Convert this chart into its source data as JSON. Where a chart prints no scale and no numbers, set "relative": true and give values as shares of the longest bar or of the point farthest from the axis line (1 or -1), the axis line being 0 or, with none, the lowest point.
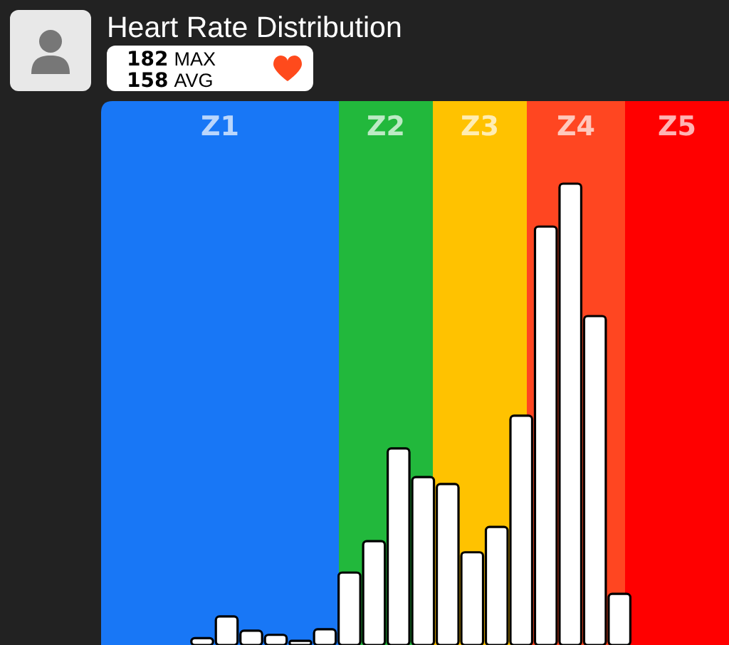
{
  "chart_data": {
    "type": "bar",
    "title": "Heart Rate Distribution",
    "annotations": [
      "182 MAX",
      "158 AVG",
      "Z1",
      "Z2",
      "Z3",
      "Z4",
      "Z5"
    ],
    "relative": true,
    "categories": [
      null,
      null,
      null,
      null,
      null,
      null,
      null,
      null,
      null,
      null,
      null,
      null,
      null,
      null,
      null,
      null,
      null,
      null
    ],
    "values": [
      0.015,
      0.062,
      0.031,
      0.022,
      0.009,
      0.034,
      0.157,
      0.225,
      0.426,
      0.364,
      0.349,
      0.201,
      0.256,
      0.497,
      0.907,
      1,
      0.713,
      0.111
    ],
    "color": "#ffffff"
  }
}
